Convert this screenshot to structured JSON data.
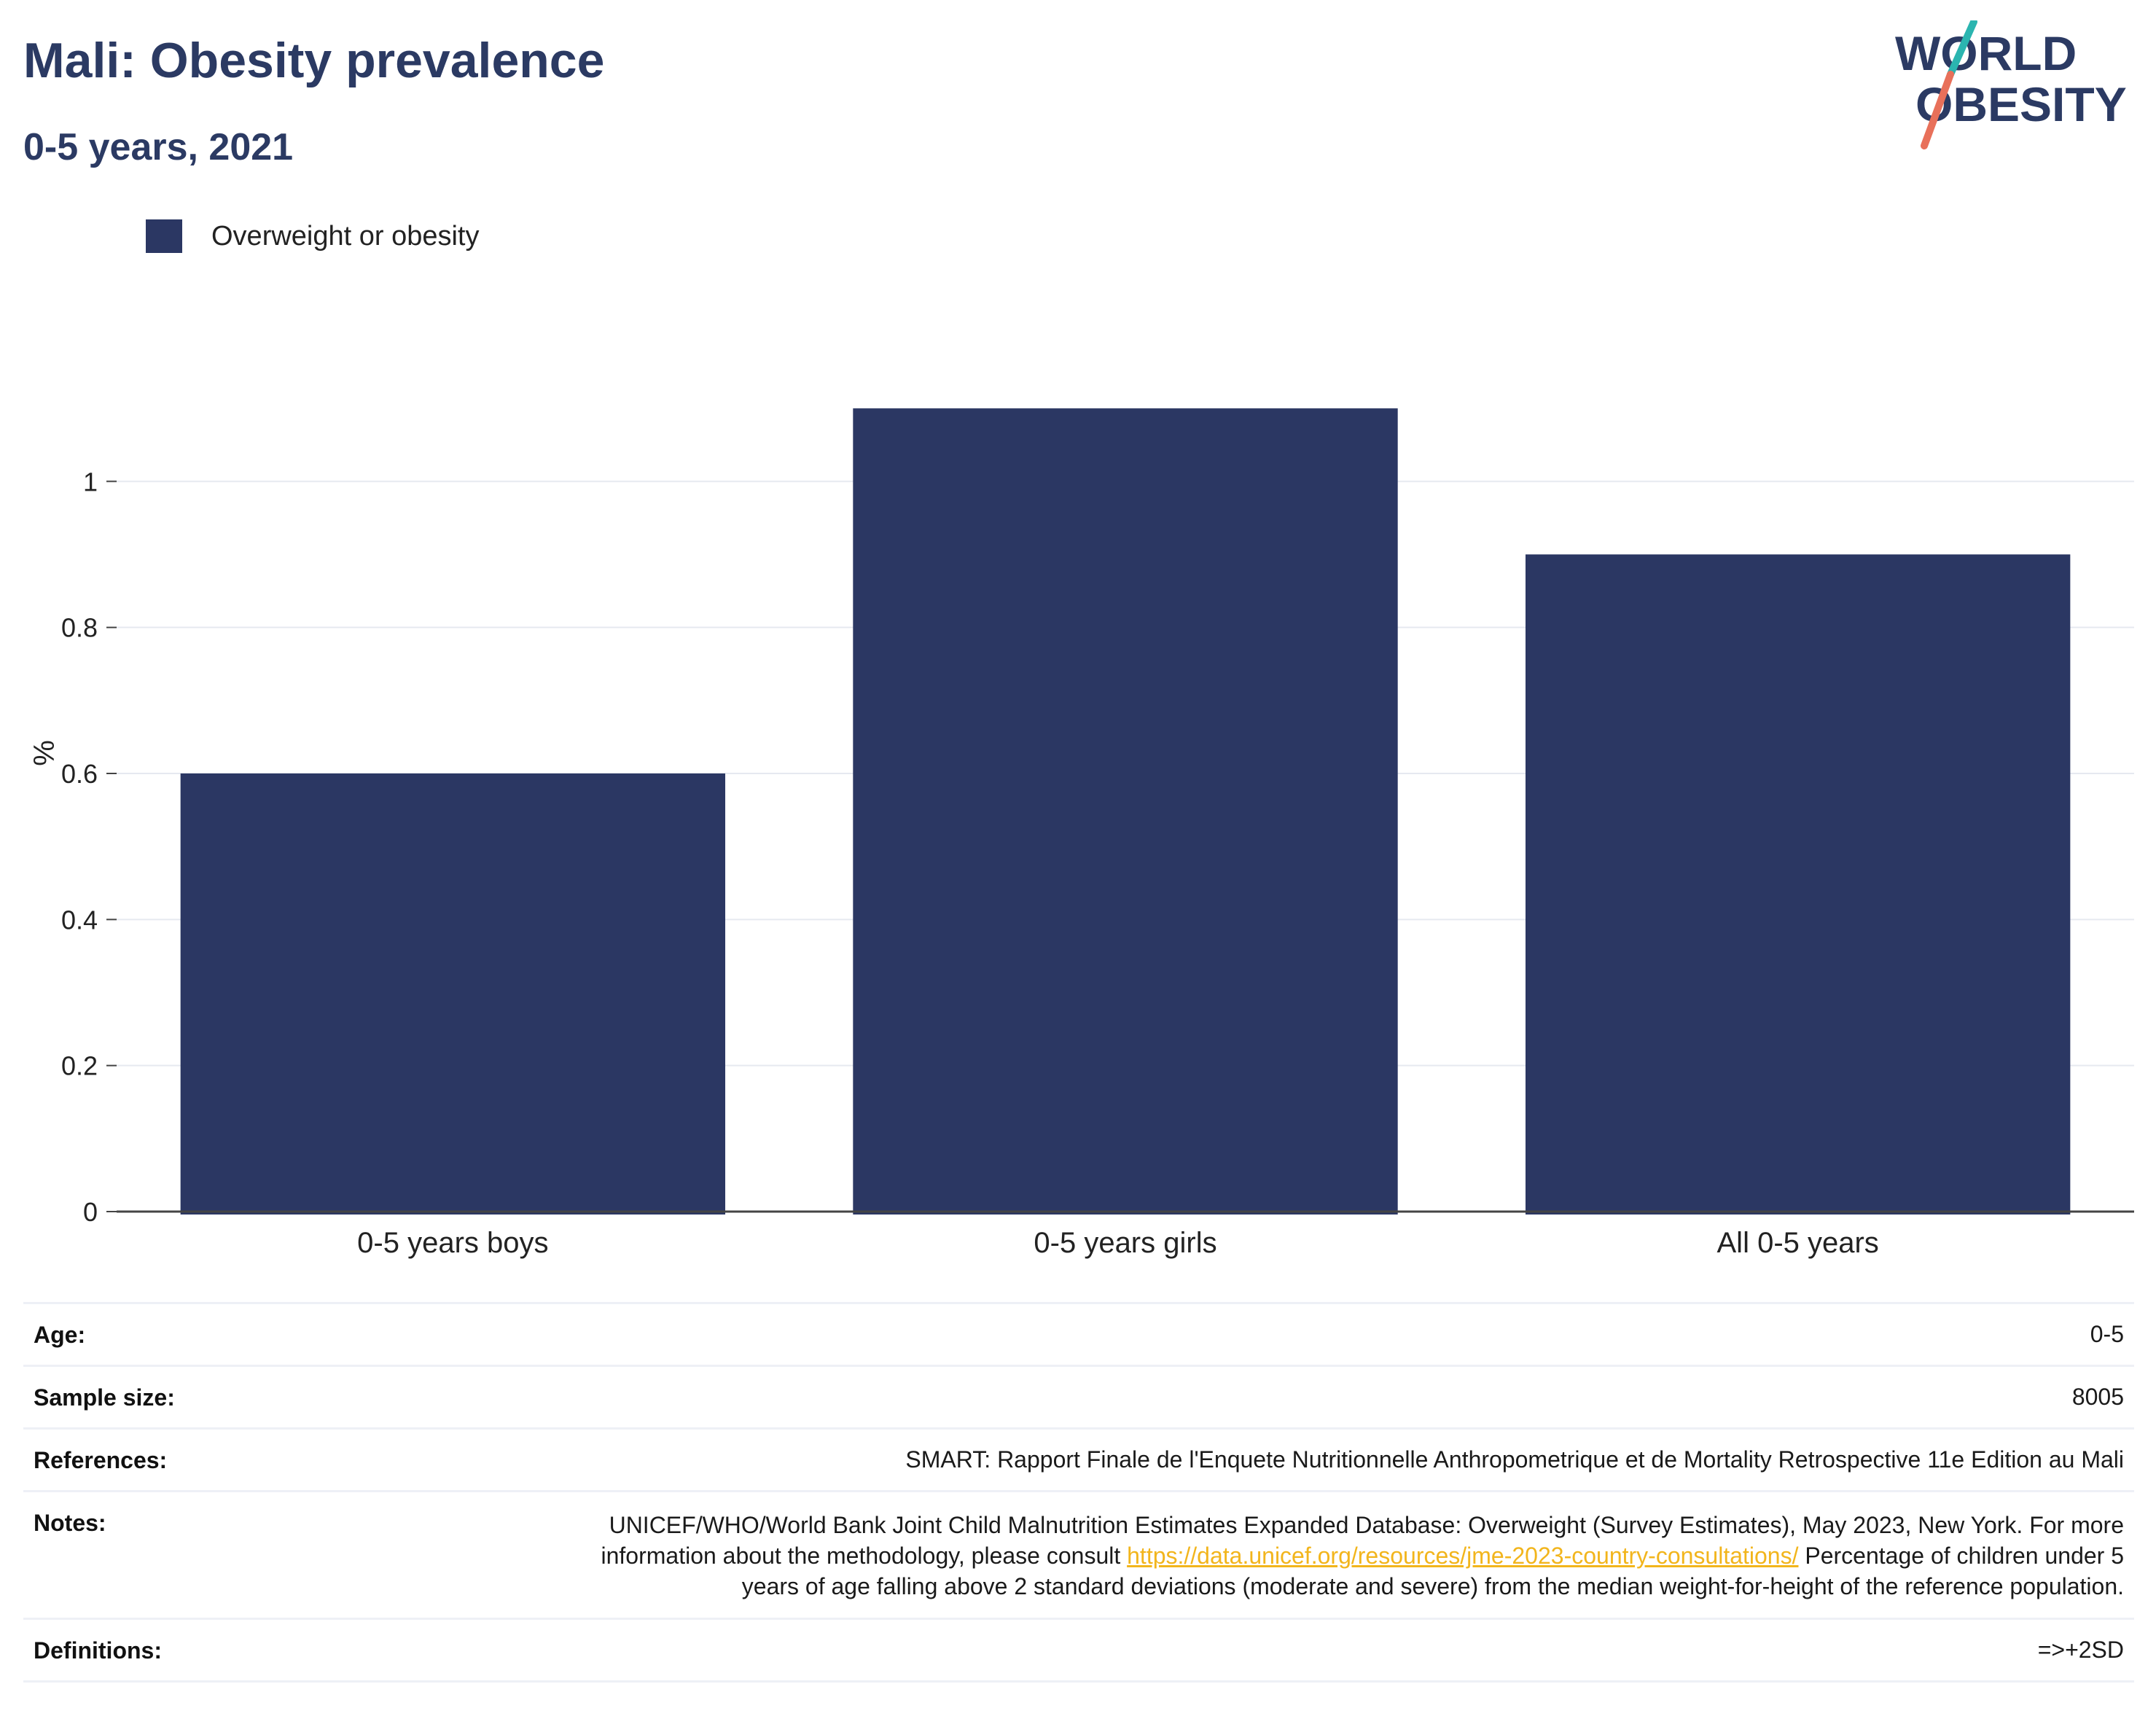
{
  "header": {
    "title": "Mali: Obesity prevalence",
    "subtitle": "0-5 years, 2021"
  },
  "logo": {
    "line1": "WORLD",
    "line2": "OBESITY",
    "colors": {
      "text": "#2b3a63",
      "slash_top": "#2bb5b0",
      "slash_bottom": "#e8705a"
    }
  },
  "legend": {
    "label": "Overweight or obesity",
    "color": "#2b3763"
  },
  "chart_data": {
    "type": "bar",
    "categories": [
      "0-5 years boys",
      "0-5 years girls",
      "All 0-5 years"
    ],
    "series": [
      {
        "name": "Overweight or obesity",
        "values": [
          0.6,
          1.1,
          0.9
        ],
        "color": "#2b3763"
      }
    ],
    "ylabel": "%",
    "xlabel": "",
    "ylim": [
      0,
      1.2
    ],
    "yticks": [
      0,
      0.2,
      0.4,
      0.6,
      0.8,
      1
    ],
    "ytick_labels": [
      "0",
      "0.2",
      "0.4",
      "0.6",
      "0.8",
      "1"
    ],
    "grid": true,
    "legend_position": "top-left"
  },
  "meta": {
    "age": {
      "label": "Age:",
      "value": "0-5"
    },
    "sample_size": {
      "label": "Sample size:",
      "value": "8005"
    },
    "references": {
      "label": "References:",
      "value": "SMART: Rapport Finale de l'Enquete Nutritionnelle Anthropometrique et de Mortality Retrospective 11e Edition au Mali"
    },
    "notes": {
      "label": "Notes:",
      "text_before": "UNICEF/WHO/World Bank Joint Child Malnutrition Estimates Expanded Database: Overweight (Survey Estimates), May 2023, New York. For more information about the methodology, please consult ",
      "link": "https://data.unicef.org/resources/jme-2023-country-consultations/",
      "text_after": " Percentage of children under 5 years of age falling above 2 standard deviations (moderate and severe) from the median weight-for-height of the reference population."
    },
    "definitions": {
      "label": "Definitions:",
      "value": "=>+2SD"
    }
  }
}
